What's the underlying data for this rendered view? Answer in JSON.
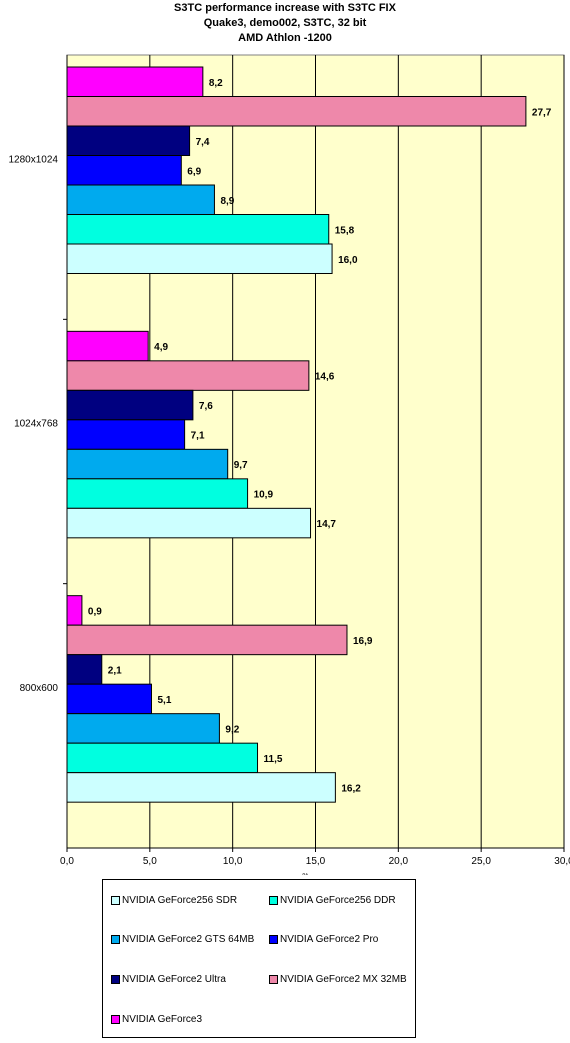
{
  "title": {
    "line1": "S3TC performance increase with S3TC FIX",
    "line2": "Quake3, demo002, S3TC, 32 bit",
    "line3": "AMD Athlon -1200"
  },
  "chart_data": {
    "type": "bar",
    "orientation": "horizontal",
    "categories": [
      "1280x1024",
      "1024x768",
      "800x600"
    ],
    "xlim": [
      0,
      30
    ],
    "x_ticks": [
      "0,0",
      "5,0",
      "10,0",
      "15,0",
      "20,0",
      "25,0",
      "30,0"
    ],
    "xlabel": "%",
    "grid": true,
    "legend_position": "bottom",
    "plot_background": "#ffffcc",
    "series": [
      {
        "name": "NVIDIA GeForce256 SDR",
        "color": "#ccffff",
        "values": [
          16.0,
          14.7,
          16.2
        ],
        "labels": [
          "16,0",
          "14,7",
          "16,2"
        ]
      },
      {
        "name": "NVIDIA GeForce256 DDR",
        "color": "#00ffe0",
        "values": [
          15.8,
          10.9,
          11.5
        ],
        "labels": [
          "15,8",
          "10,9",
          "11,5"
        ]
      },
      {
        "name": "NVIDIA GeForce2 GTS 64MB",
        "color": "#00aaee",
        "values": [
          8.9,
          9.7,
          9.2
        ],
        "labels": [
          "8,9",
          "9,7",
          "9,2"
        ]
      },
      {
        "name": "NVIDIA GeForce2 Pro",
        "color": "#0000ff",
        "values": [
          6.9,
          7.1,
          5.1
        ],
        "labels": [
          "6,9",
          "7,1",
          "5,1"
        ]
      },
      {
        "name": "NVIDIA GeForce2 Ultra",
        "color": "#000080",
        "values": [
          7.4,
          7.6,
          2.1
        ],
        "labels": [
          "7,4",
          "7,6",
          "2,1"
        ]
      },
      {
        "name": "NVIDIA GeForce2 MX 32MB",
        "color": "#ee88aa",
        "values": [
          27.7,
          14.6,
          16.9
        ],
        "labels": [
          "27,7",
          "14,6",
          "16,9"
        ]
      },
      {
        "name": "NVIDIA GeForce3",
        "color": "#ff00ff",
        "values": [
          8.2,
          4.9,
          0.9
        ],
        "labels": [
          "8,2",
          "4,9",
          "0,9"
        ]
      }
    ]
  }
}
